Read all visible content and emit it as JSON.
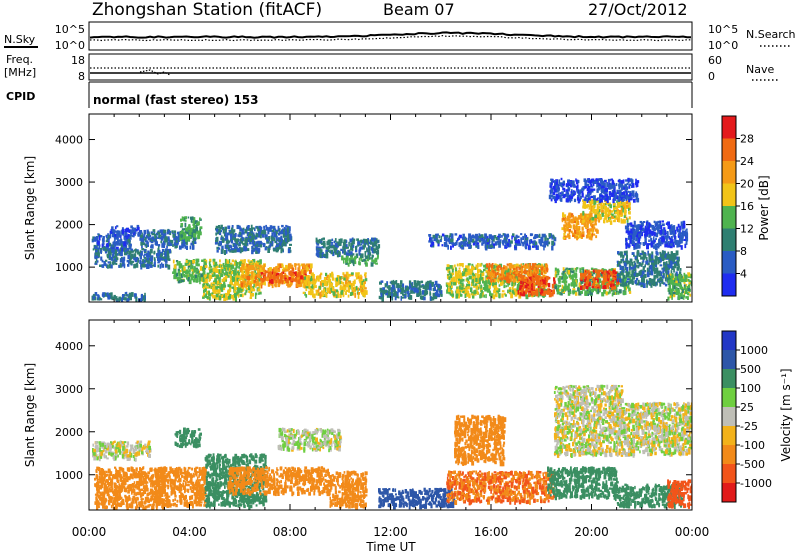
{
  "header": {
    "station": "Zhongshan Station (fitACF)",
    "beam": "Beam 07",
    "date": "27/Oct/2012",
    "mode": "normal (fast stereo) 153"
  },
  "strips": {
    "nsky_label": "N.Sky",
    "nsearch_label": "N.Search",
    "freq_label_1": "Freq.",
    "freq_label_2": "[MHz]",
    "nave_label": "Nave",
    "cpid_label": "CPID",
    "noise_ticks_left": [
      "10^5",
      "10^0"
    ],
    "noise_ticks_right": [
      "10^5",
      "10^0"
    ],
    "freq_ticks_left": [
      "18",
      "8"
    ],
    "nave_ticks_right": [
      "60",
      "0"
    ]
  },
  "chart_data": {
    "type": "heatmap",
    "xlabel": "Time UT",
    "x_ticks": [
      "00:00",
      "04:00",
      "08:00",
      "12:00",
      "16:00",
      "20:00",
      "00:00"
    ],
    "x_hours": [
      0,
      4,
      8,
      12,
      16,
      20,
      24
    ],
    "xlim_hours": [
      0,
      24
    ],
    "ylim_km": [
      180,
      4600
    ],
    "y_ticks": [
      1000,
      2000,
      3000,
      4000
    ],
    "panels": [
      {
        "id": "power",
        "ylabel": "Slant Range [km]",
        "colorbar_label": "Power [dB]",
        "colorbar_ticks": [
          "4",
          "8",
          "12",
          "16",
          "20",
          "24",
          "28"
        ],
        "colors": [
          "#1f2df0",
          "#2a5cc4",
          "#2f7f72",
          "#4fb34f",
          "#f2c418",
          "#f59a16",
          "#f06a12",
          "#e41a1c"
        ],
        "regions": [
          {
            "t0": 0.1,
            "t1": 1.6,
            "r0": 1400,
            "r1": 1800,
            "v": 6
          },
          {
            "t0": 0.1,
            "t1": 2.2,
            "r0": 250,
            "r1": 420,
            "v": 9
          },
          {
            "t0": 0.2,
            "t1": 3.2,
            "r0": 1050,
            "r1": 1450,
            "v": 8
          },
          {
            "t0": 0.8,
            "t1": 2.0,
            "r0": 1750,
            "r1": 2000,
            "v": 5
          },
          {
            "t0": 2.0,
            "t1": 4.2,
            "r0": 1500,
            "r1": 1900,
            "v": 7
          },
          {
            "t0": 3.3,
            "t1": 4.6,
            "r0": 700,
            "r1": 1200,
            "v": 14
          },
          {
            "t0": 3.6,
            "t1": 4.4,
            "r0": 1700,
            "r1": 2200,
            "v": 13
          },
          {
            "t0": 4.5,
            "t1": 6.8,
            "r0": 300,
            "r1": 1200,
            "v": 16
          },
          {
            "t0": 5.0,
            "t1": 8.0,
            "r0": 1400,
            "r1": 2000,
            "v": 8
          },
          {
            "t0": 6.0,
            "t1": 8.8,
            "r0": 600,
            "r1": 1100,
            "v": 22
          },
          {
            "t0": 6.8,
            "t1": 8.6,
            "r0": 700,
            "r1": 900,
            "v": 27
          },
          {
            "t0": 8.5,
            "t1": 11.0,
            "r0": 350,
            "r1": 900,
            "v": 18
          },
          {
            "t0": 9.0,
            "t1": 11.5,
            "r0": 1300,
            "r1": 1700,
            "v": 9
          },
          {
            "t0": 10.0,
            "t1": 11.5,
            "r0": 1100,
            "r1": 1300,
            "v": 13
          },
          {
            "t0": 11.5,
            "t1": 14.0,
            "r0": 300,
            "r1": 700,
            "v": 9
          },
          {
            "t0": 13.5,
            "t1": 18.5,
            "r0": 1500,
            "r1": 1800,
            "v": 6
          },
          {
            "t0": 14.2,
            "t1": 18.2,
            "r0": 350,
            "r1": 1100,
            "v": 16
          },
          {
            "t0": 15.8,
            "t1": 18.2,
            "r0": 700,
            "r1": 1100,
            "v": 24
          },
          {
            "t0": 17.0,
            "t1": 18.5,
            "r0": 400,
            "r1": 800,
            "v": 28
          },
          {
            "t0": 18.5,
            "t1": 21.5,
            "r0": 400,
            "r1": 1000,
            "v": 14
          },
          {
            "t0": 19.5,
            "t1": 21.0,
            "r0": 550,
            "r1": 950,
            "v": 27
          },
          {
            "t0": 18.8,
            "t1": 20.2,
            "r0": 1700,
            "r1": 2300,
            "v": 22
          },
          {
            "t0": 19.6,
            "t1": 21.5,
            "r0": 2100,
            "r1": 2600,
            "v": 18
          },
          {
            "t0": 21.3,
            "t1": 23.8,
            "r0": 1500,
            "r1": 2100,
            "v": 5
          },
          {
            "t0": 21.0,
            "t1": 23.5,
            "r0": 600,
            "r1": 1400,
            "v": 9
          },
          {
            "t0": 18.3,
            "t1": 21.8,
            "r0": 2600,
            "r1": 3100,
            "v": 4
          },
          {
            "t0": 23.0,
            "t1": 24.0,
            "r0": 300,
            "r1": 900,
            "v": 14
          }
        ]
      },
      {
        "id": "velocity",
        "ylabel": "Slant Range [km]",
        "colorbar_label": "Velocity [m s⁻¹]",
        "colorbar_ticks": [
          "1000",
          "500",
          "100",
          "25",
          "-25",
          "-100",
          "-500",
          "-1000"
        ],
        "colors": [
          "#2237c6",
          "#2d56a8",
          "#3b8f62",
          "#6fcf40",
          "#bfbfb7",
          "#f3b21a",
          "#f28a19",
          "#f2541a",
          "#e11a1a"
        ],
        "regions": [
          {
            "t0": 0.1,
            "t1": 2.4,
            "r0": 1400,
            "r1": 1800,
            "v": 0
          },
          {
            "t0": 0.2,
            "t1": 3.0,
            "r0": 250,
            "r1": 1200,
            "v": -250
          },
          {
            "t0": 2.6,
            "t1": 4.6,
            "r0": 300,
            "r1": 1200,
            "v": -300
          },
          {
            "t0": 3.4,
            "t1": 4.4,
            "r0": 1700,
            "r1": 2100,
            "v": 300
          },
          {
            "t0": 4.6,
            "t1": 7.0,
            "r0": 300,
            "r1": 1500,
            "v": 400
          },
          {
            "t0": 5.5,
            "t1": 9.5,
            "r0": 600,
            "r1": 1200,
            "v": -400
          },
          {
            "t0": 7.5,
            "t1": 10.0,
            "r0": 1600,
            "r1": 2100,
            "v": 20
          },
          {
            "t0": 9.5,
            "t1": 11.0,
            "r0": 300,
            "r1": 1100,
            "v": -180
          },
          {
            "t0": 11.5,
            "t1": 14.5,
            "r0": 300,
            "r1": 700,
            "v": 800
          },
          {
            "t0": 14.2,
            "t1": 18.5,
            "r0": 400,
            "r1": 1100,
            "v": -500
          },
          {
            "t0": 14.5,
            "t1": 16.5,
            "r0": 1300,
            "r1": 2400,
            "v": -200
          },
          {
            "t0": 18.2,
            "t1": 21.0,
            "r0": 500,
            "r1": 1200,
            "v": 250
          },
          {
            "t0": 18.5,
            "t1": 24.0,
            "r0": 1500,
            "r1": 2700,
            "v": 0
          },
          {
            "t0": 18.5,
            "t1": 21.2,
            "r0": 2700,
            "r1": 3100,
            "v": 0
          },
          {
            "t0": 21.0,
            "t1": 23.6,
            "r0": 300,
            "r1": 800,
            "v": 300
          },
          {
            "t0": 23.0,
            "t1": 24.0,
            "r0": 300,
            "r1": 900,
            "v": -600
          }
        ]
      }
    ]
  }
}
